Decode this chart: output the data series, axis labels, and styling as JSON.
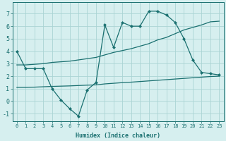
{
  "title": "",
  "xlabel": "Humidex (Indice chaleur)",
  "bg_color": "#d6efef",
  "grid_color": "#aad4d4",
  "line_color": "#1a7070",
  "x": [
    0,
    1,
    2,
    3,
    4,
    5,
    6,
    7,
    8,
    9,
    10,
    11,
    12,
    13,
    14,
    15,
    16,
    17,
    18,
    19,
    20,
    21,
    22,
    23
  ],
  "y_jagged": [
    4.0,
    2.6,
    2.6,
    2.6,
    1.0,
    0.1,
    -0.6,
    -1.2,
    0.9,
    1.5,
    6.1,
    4.3,
    6.3,
    6.0,
    6.0,
    7.2,
    7.2,
    6.9,
    6.3,
    5.0,
    3.3,
    2.3,
    2.2,
    2.1
  ],
  "y_upper": [
    2.9,
    2.9,
    2.95,
    3.0,
    3.1,
    3.15,
    3.2,
    3.3,
    3.4,
    3.5,
    3.7,
    3.9,
    4.05,
    4.2,
    4.4,
    4.6,
    4.9,
    5.1,
    5.4,
    5.7,
    5.9,
    6.1,
    6.35,
    6.4
  ],
  "y_lower": [
    1.1,
    1.1,
    1.12,
    1.15,
    1.18,
    1.2,
    1.22,
    1.25,
    1.28,
    1.3,
    1.38,
    1.43,
    1.48,
    1.52,
    1.57,
    1.62,
    1.67,
    1.72,
    1.77,
    1.82,
    1.87,
    1.92,
    1.97,
    2.0
  ],
  "ylim": [
    -1.6,
    7.9
  ],
  "xlim": [
    -0.5,
    23.5
  ],
  "yticks": [
    -1,
    0,
    1,
    2,
    3,
    4,
    5,
    6,
    7
  ],
  "xticks": [
    0,
    1,
    2,
    3,
    4,
    5,
    6,
    7,
    8,
    9,
    10,
    11,
    12,
    13,
    14,
    15,
    16,
    17,
    18,
    19,
    20,
    21,
    22,
    23
  ],
  "markersize": 2.5,
  "linewidth": 0.9,
  "tick_fontsize": 5,
  "xlabel_fontsize": 6
}
